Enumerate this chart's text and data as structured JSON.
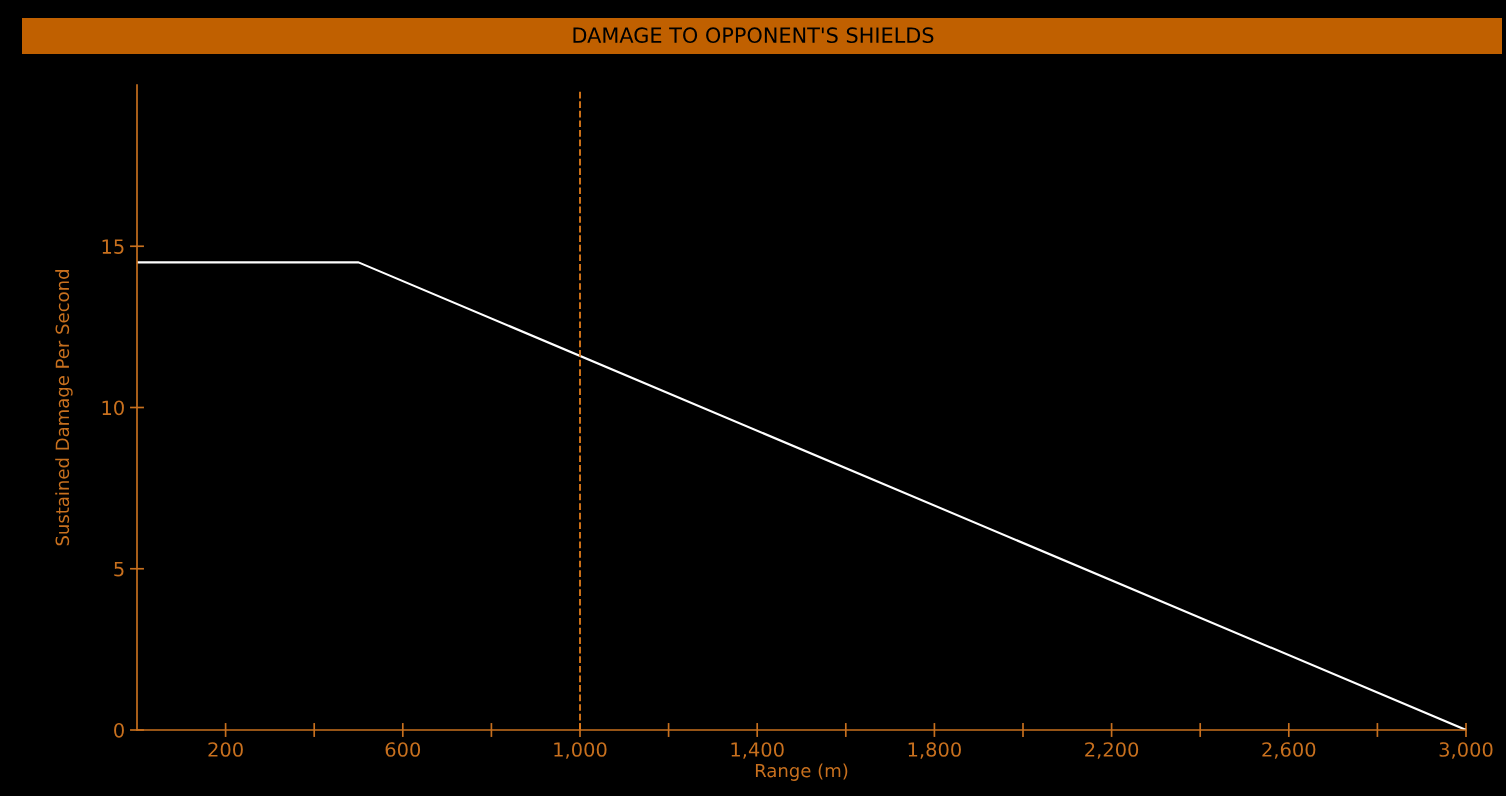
{
  "chart_data": {
    "type": "line",
    "title": "DAMAGE TO OPPONENT'S SHIELDS",
    "xlabel": "Range (m)",
    "ylabel": "Sustained Damage Per Second",
    "series": [
      {
        "color": "#ffffff",
        "x": [
          0,
          500,
          3000
        ],
        "values": [
          14.5,
          14.5,
          0
        ]
      }
    ],
    "xlim": [
      0,
      3000
    ],
    "ylim": [
      0,
      20
    ],
    "xticks": [
      200,
      {
        "value": 400,
        "label": null
      },
      600,
      {
        "value": 800,
        "label": null
      },
      {
        "value": 1000,
        "label": "1,000"
      },
      {
        "value": 1200,
        "label": null
      },
      {
        "value": 1400,
        "label": "1,400"
      },
      {
        "value": 1600,
        "label": null
      },
      {
        "value": 1800,
        "label": "1,800"
      },
      {
        "value": 2000,
        "label": null
      },
      {
        "value": 2200,
        "label": "2,200"
      },
      {
        "value": 2400,
        "label": null
      },
      {
        "value": 2600,
        "label": "2,600"
      },
      {
        "value": 2800,
        "label": null
      },
      {
        "value": 3000,
        "label": "3,000"
      }
    ],
    "yticks": [
      0,
      5,
      10,
      15
    ],
    "ref_lines": [
      {
        "axis": "x",
        "value": 1000,
        "color": "#e07b1a",
        "line_style": "dashed"
      }
    ],
    "grid": false,
    "legend": false,
    "marker": "none",
    "line_style": "solid"
  }
}
